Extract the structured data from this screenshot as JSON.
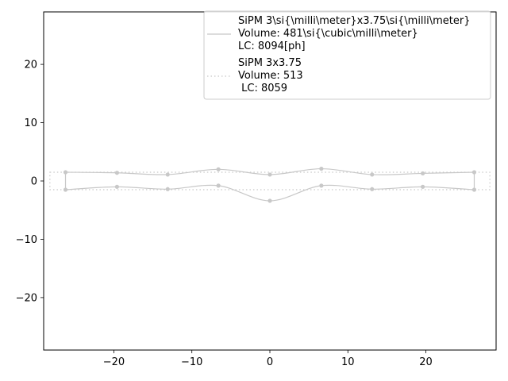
{
  "chart_data": {
    "type": "line",
    "xlim": [
      -29,
      29
    ],
    "ylim": [
      -29,
      29
    ],
    "x_ticks": [
      -20,
      -10,
      0,
      10,
      20
    ],
    "y_ticks": [
      -20,
      -10,
      0,
      10,
      20
    ],
    "grid": false,
    "legend_position": "upper-right",
    "series": [
      {
        "name": "SiPM 3\\si{\\milli\\meter}x3.75\\si{\\milli\\meter}\nVolume: 481\\si{\\cubic\\milli\\meter}\nLC: 8094[ph]",
        "style": "solid",
        "color": "#c8c8c8",
        "upper_points": [
          [
            -26.2,
            1.5
          ],
          [
            -19.6,
            1.4
          ],
          [
            -13.1,
            1.1
          ],
          [
            -6.6,
            2.0
          ],
          [
            0,
            1.1
          ],
          [
            6.6,
            2.1
          ],
          [
            13.1,
            1.1
          ],
          [
            19.6,
            1.3
          ],
          [
            26.2,
            1.5
          ]
        ],
        "lower_points": [
          [
            -26.2,
            -1.5
          ],
          [
            -19.6,
            -1.0
          ],
          [
            -13.1,
            -1.4
          ],
          [
            -6.6,
            -0.8
          ],
          [
            0,
            -3.4
          ],
          [
            6.6,
            -0.8
          ],
          [
            13.1,
            -1.4
          ],
          [
            19.6,
            -1.0
          ],
          [
            26.2,
            -1.5
          ]
        ]
      },
      {
        "name": "SiPM 3x3.75\nVolume: 513\n LC: 8059",
        "style": "dotted",
        "color": "#c8c8c8",
        "rectangle": {
          "x": [
            -28.2,
            28.2
          ],
          "y": [
            -1.5,
            1.5
          ]
        }
      }
    ]
  }
}
